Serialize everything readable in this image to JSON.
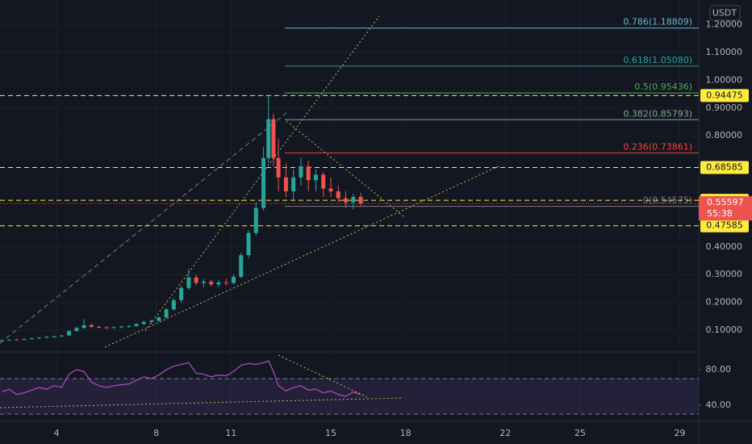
{
  "chart_data": {
    "type": "candlestick",
    "currency": "USDT",
    "x": [
      1.8,
      2.1,
      2.4,
      2.7,
      3.0,
      3.3,
      3.6,
      3.9,
      4.2,
      4.5,
      4.8,
      5.1,
      5.4,
      5.7,
      6.0,
      6.3,
      6.6,
      6.9,
      7.2,
      7.5,
      7.8,
      8.1,
      8.4,
      8.7,
      9.0,
      9.3,
      9.6,
      9.9,
      10.2,
      10.5,
      10.8,
      11.1,
      11.4,
      11.7,
      12.0,
      12.3,
      12.5,
      12.7,
      12.9,
      13.2,
      13.5,
      13.8,
      14.1,
      14.4,
      14.7,
      15.0,
      15.3,
      15.6,
      15.9,
      16.2
    ],
    "open": [
      0.062,
      0.064,
      0.066,
      0.065,
      0.068,
      0.071,
      0.073,
      0.076,
      0.078,
      0.081,
      0.097,
      0.108,
      0.118,
      0.112,
      0.11,
      0.108,
      0.111,
      0.113,
      0.115,
      0.122,
      0.13,
      0.134,
      0.146,
      0.175,
      0.208,
      0.252,
      0.29,
      0.27,
      0.275,
      0.265,
      0.272,
      0.27,
      0.292,
      0.37,
      0.45,
      0.54,
      0.72,
      0.86,
      0.72,
      0.65,
      0.6,
      0.65,
      0.69,
      0.64,
      0.66,
      0.61,
      0.6,
      0.575,
      0.56,
      0.58
    ],
    "high": [
      0.066,
      0.068,
      0.069,
      0.07,
      0.073,
      0.075,
      0.078,
      0.08,
      0.083,
      0.1,
      0.112,
      0.14,
      0.124,
      0.117,
      0.114,
      0.113,
      0.116,
      0.118,
      0.125,
      0.135,
      0.138,
      0.15,
      0.18,
      0.215,
      0.26,
      0.32,
      0.3,
      0.285,
      0.282,
      0.28,
      0.285,
      0.3,
      0.38,
      0.46,
      0.56,
      0.76,
      0.945,
      0.88,
      0.79,
      0.7,
      0.68,
      0.72,
      0.71,
      0.68,
      0.67,
      0.65,
      0.62,
      0.6,
      0.59,
      0.595
    ],
    "low": [
      0.06,
      0.062,
      0.064,
      0.063,
      0.066,
      0.069,
      0.071,
      0.073,
      0.075,
      0.079,
      0.094,
      0.104,
      0.108,
      0.106,
      0.105,
      0.104,
      0.107,
      0.109,
      0.112,
      0.119,
      0.125,
      0.13,
      0.142,
      0.17,
      0.2,
      0.245,
      0.262,
      0.255,
      0.258,
      0.255,
      0.262,
      0.265,
      0.288,
      0.36,
      0.44,
      0.53,
      0.7,
      0.69,
      0.6,
      0.58,
      0.57,
      0.62,
      0.6,
      0.6,
      0.58,
      0.58,
      0.56,
      0.54,
      0.535,
      0.545
    ],
    "close": [
      0.064,
      0.066,
      0.065,
      0.068,
      0.071,
      0.073,
      0.076,
      0.078,
      0.081,
      0.097,
      0.108,
      0.118,
      0.112,
      0.11,
      0.108,
      0.111,
      0.113,
      0.115,
      0.122,
      0.13,
      0.134,
      0.146,
      0.175,
      0.208,
      0.252,
      0.29,
      0.27,
      0.275,
      0.265,
      0.272,
      0.27,
      0.292,
      0.37,
      0.45,
      0.54,
      0.72,
      0.86,
      0.72,
      0.65,
      0.6,
      0.65,
      0.69,
      0.64,
      0.66,
      0.61,
      0.6,
      0.575,
      0.56,
      0.58,
      0.556
    ],
    "up_color": "#26a69a",
    "down_color": "#ef5350",
    "xlim": [
      1.73,
      29.76
    ],
    "xticks": [
      4,
      8,
      11,
      15,
      18,
      22,
      25,
      29
    ],
    "ylim": [
      0.0215,
      1.289
    ],
    "yticks": [
      {
        "value": 0.1,
        "label": "0.10000"
      },
      {
        "value": 0.2,
        "label": "0.20000"
      },
      {
        "value": 0.3,
        "label": "0.30000"
      },
      {
        "value": 0.4,
        "label": "0.40000"
      },
      {
        "value": 0.8,
        "label": "0.80000"
      },
      {
        "value": 0.9,
        "label": "0.90000"
      },
      {
        "value": 1.0,
        "label": "1.00000"
      },
      {
        "value": 1.1,
        "label": "1.10000"
      },
      {
        "value": 1.2,
        "label": "1.20000"
      }
    ],
    "grid": true,
    "fib_levels": [
      {
        "label": "0.786(1.18809)",
        "value": 1.18809,
        "color": "#5fb9c9"
      },
      {
        "label": "0.618(1.05080)",
        "value": 1.0508,
        "color": "#26a69a"
      },
      {
        "label": "0.5(0.95436)",
        "value": 0.95436,
        "color": "#4caf50"
      },
      {
        "label": "0.382(0.85793)",
        "value": 0.85793,
        "color": "#81a88b"
      },
      {
        "label": "0.236(0.73861)",
        "value": 0.73861,
        "color": "#f44336"
      },
      {
        "label": "0(0.54575)",
        "value": 0.54575,
        "color": "#787b86"
      }
    ],
    "levels": [
      0.94475,
      0.68585,
      0.56753,
      0.47585
    ],
    "level_color": "#ffeb3b",
    "last_price": 0.55597,
    "countdown": "55:38",
    "rsi": {
      "values": [
        55,
        58,
        52,
        54,
        57,
        60,
        58,
        62,
        60,
        75,
        80,
        78,
        66,
        62,
        60,
        62,
        63,
        64,
        68,
        72,
        70,
        74,
        80,
        84,
        86,
        88,
        76,
        75,
        72,
        74,
        73,
        78,
        85,
        87,
        86,
        88,
        90,
        78,
        62,
        56,
        60,
        62,
        57,
        58,
        54,
        56,
        52,
        50,
        55,
        52
      ],
      "color": "#ab47bc",
      "ylim": [
        21.8,
        100
      ],
      "yticks": [
        {
          "value": 80,
          "label": "80.00"
        },
        {
          "value": 40,
          "label": "40.00"
        }
      ],
      "bands": [
        70,
        30
      ]
    }
  }
}
